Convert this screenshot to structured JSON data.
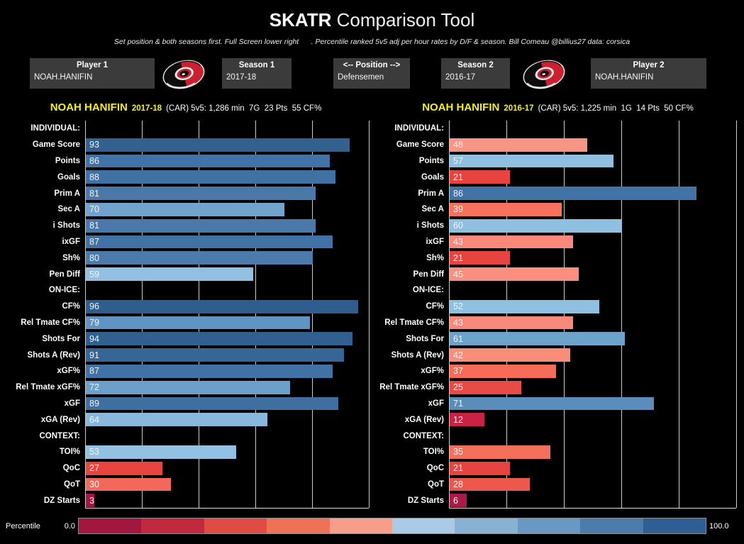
{
  "title": {
    "brand": "SKATR",
    "rest": " Comparison Tool"
  },
  "subtitle": "Set position & both seasons first. Full Screen lower right      . Percentile ranked 5v5 adj per hour rates by D/F & season. Bill Comeau @billius27 data: corsica",
  "colors": {
    "accent_yellow": "#f6ee2b",
    "background": "#000000",
    "control_box": "#3b3b3b"
  },
  "controls": {
    "player1": {
      "label": "Player 1",
      "value": "NOAH.HANIFIN"
    },
    "season1": {
      "label": "Season 1",
      "value": "2017-18"
    },
    "position": {
      "label": "<-- Position -->",
      "value": "Defensemen"
    },
    "season2": {
      "label": "Season 2",
      "value": "2016-17"
    },
    "player2": {
      "label": "Player 2",
      "value": "NOAH.HANIFIN"
    },
    "team_logo": "carolina-hurricanes-logo"
  },
  "chart_data": [
    {
      "type": "bar",
      "title_player": "NOAH HANIFIN",
      "title_season": "2017-18",
      "title_stats": "(CAR) 5v5: 1,286 min  7G  23 Pts  55 CF%",
      "xlim": [
        0,
        100
      ],
      "grid_step": 20,
      "legend_position": "bottom",
      "rows": [
        {
          "label": "INDIVIDUAL:",
          "header": true
        },
        {
          "label": "Game Score",
          "value": 93,
          "color": "#326190"
        },
        {
          "label": "Points",
          "value": 86,
          "color": "#4273a6"
        },
        {
          "label": "Goals",
          "value": 88,
          "color": "#4171a3"
        },
        {
          "label": "Prim A",
          "value": 81,
          "color": "#4a79a9"
        },
        {
          "label": "Sec A",
          "value": 70,
          "color": "#72a3cc"
        },
        {
          "label": "i Shots",
          "value": 81,
          "color": "#4a79a9"
        },
        {
          "label": "ixGF",
          "value": 87,
          "color": "#4272a5"
        },
        {
          "label": "Sh%",
          "value": 80,
          "color": "#4c7aaa"
        },
        {
          "label": "Pen Diff",
          "value": 59,
          "color": "#92c0e0"
        },
        {
          "label": "ON-ICE:",
          "header": true
        },
        {
          "label": "CF%",
          "value": 96,
          "color": "#2e5d8e"
        },
        {
          "label": "Rel Tmate CF%",
          "value": 79,
          "color": "#6095c3"
        },
        {
          "label": "Shots For",
          "value": 94,
          "color": "#315f90"
        },
        {
          "label": "Shots A (Rev)",
          "value": 91,
          "color": "#376595"
        },
        {
          "label": "xGF%",
          "value": 87,
          "color": "#4272a5"
        },
        {
          "label": "Rel Tmate xGF%",
          "value": 72,
          "color": "#6da0c9"
        },
        {
          "label": "xGF",
          "value": 89,
          "color": "#3f6fa0"
        },
        {
          "label": "xGA (Rev)",
          "value": 64,
          "color": "#89b8dc"
        },
        {
          "label": "CONTEXT:",
          "header": true
        },
        {
          "label": "TOI%",
          "value": 53,
          "color": "#93c1e2"
        },
        {
          "label": "QoC",
          "value": 27,
          "color": "#e8453f"
        },
        {
          "label": "QoT",
          "value": 30,
          "color": "#f2685a"
        },
        {
          "label": "DZ Starts",
          "value": 3,
          "color": "#a31744"
        }
      ]
    },
    {
      "type": "bar",
      "title_player": "NOAH HANIFIN",
      "title_season": "2016-17",
      "title_stats": "(CAR) 5v5: 1,225 min  1G  14 Pts  50 CF%",
      "xlim": [
        0,
        100
      ],
      "grid_step": 20,
      "legend_position": "bottom",
      "rows": [
        {
          "label": "INDIVIDUAL:",
          "header": true
        },
        {
          "label": "Game Score",
          "value": 48,
          "color": "#f99585"
        },
        {
          "label": "Points",
          "value": 57,
          "color": "#8fc0e0"
        },
        {
          "label": "Goals",
          "value": 21,
          "color": "#e8443f"
        },
        {
          "label": "Prim A",
          "value": 86,
          "color": "#4273a6"
        },
        {
          "label": "Sec A",
          "value": 39,
          "color": "#f7715d"
        },
        {
          "label": "i Shots",
          "value": 60,
          "color": "#8fc0e0"
        },
        {
          "label": "ixGF",
          "value": 43,
          "color": "#f9897a"
        },
        {
          "label": "Sh%",
          "value": 21,
          "color": "#e8443f"
        },
        {
          "label": "Pen Diff",
          "value": 45,
          "color": "#f9907f"
        },
        {
          "label": "ON-ICE:",
          "header": true
        },
        {
          "label": "CF%",
          "value": 52,
          "color": "#8fc0e0"
        },
        {
          "label": "Rel Tmate CF%",
          "value": 43,
          "color": "#f9897a"
        },
        {
          "label": "Shots For",
          "value": 61,
          "color": "#6da2cb"
        },
        {
          "label": "Shots A (Rev)",
          "value": 42,
          "color": "#f98d7c"
        },
        {
          "label": "xGF%",
          "value": 37,
          "color": "#f76c58"
        },
        {
          "label": "Rel Tmate xGF%",
          "value": 25,
          "color": "#e84a45"
        },
        {
          "label": "xGF",
          "value": 71,
          "color": "#5a8cbc"
        },
        {
          "label": "xGA (Rev)",
          "value": 12,
          "color": "#c82245"
        },
        {
          "label": "CONTEXT:",
          "header": true
        },
        {
          "label": "TOI%",
          "value": 35,
          "color": "#f5705b"
        },
        {
          "label": "QoC",
          "value": 21,
          "color": "#e8443f"
        },
        {
          "label": "QoT",
          "value": 28,
          "color": "#ed584c"
        },
        {
          "label": "DZ Starts",
          "value": 6,
          "color": "#a91c45"
        }
      ]
    }
  ],
  "legend": {
    "label": "Percentile",
    "min": "0.0",
    "max": "100.0",
    "segments": [
      "#a11740",
      "#c2293e",
      "#e04c44",
      "#ef7257",
      "#f89d89",
      "#a9cbe6",
      "#88b2d4",
      "#6a98c4",
      "#4c7cab",
      "#2f5e94"
    ]
  }
}
